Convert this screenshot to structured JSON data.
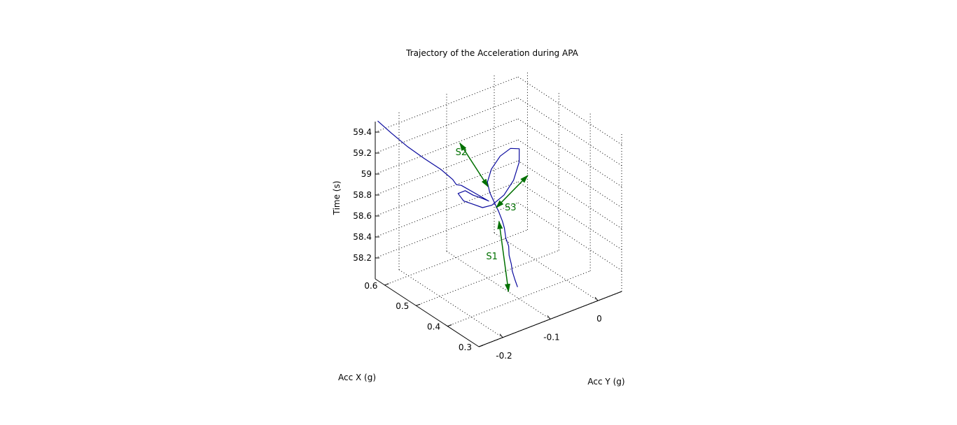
{
  "chart_data": {
    "type": "line3d",
    "title": "Trajectory of the Acceleration during APA",
    "xlabel": "Acc X (g)",
    "ylabel": "Acc Y (g)",
    "zlabel": "Time (s)",
    "x_ticks": [
      "0.3",
      "0.4",
      "0.5",
      "0.6"
    ],
    "y_ticks": [
      "-0.2",
      "-0.1",
      "0"
    ],
    "z_ticks": [
      "58.2",
      "58.4",
      "58.6",
      "58.8",
      "59",
      "59.2",
      "59.4"
    ],
    "grid": true,
    "colors": {
      "trajectory": "#0a0a9e",
      "annotation": "#007000"
    },
    "series": [
      {
        "name": "",
        "points": [
          [
            0.398,
            -0.104,
            58.12
          ],
          [
            0.405,
            -0.105,
            58.18
          ],
          [
            0.412,
            -0.106,
            58.25
          ],
          [
            0.418,
            -0.104,
            58.3
          ],
          [
            0.422,
            -0.106,
            58.38
          ],
          [
            0.428,
            -0.103,
            58.45
          ],
          [
            0.434,
            -0.105,
            58.52
          ],
          [
            0.44,
            -0.104,
            58.6
          ],
          [
            0.445,
            -0.105,
            58.66
          ],
          [
            0.452,
            -0.108,
            58.74
          ],
          [
            0.46,
            -0.112,
            58.82
          ],
          [
            0.47,
            -0.115,
            58.9
          ],
          [
            0.482,
            -0.112,
            58.97
          ],
          [
            0.495,
            -0.095,
            59.04
          ],
          [
            0.505,
            -0.07,
            59.1
          ],
          [
            0.51,
            -0.045,
            59.12
          ],
          [
            0.505,
            -0.03,
            59.1
          ],
          [
            0.49,
            -0.04,
            59.02
          ],
          [
            0.47,
            -0.065,
            58.93
          ],
          [
            0.455,
            -0.095,
            58.87
          ],
          [
            0.448,
            -0.125,
            58.84
          ],
          [
            0.455,
            -0.14,
            58.83
          ],
          [
            0.47,
            -0.15,
            58.85
          ],
          [
            0.485,
            -0.16,
            58.87
          ],
          [
            0.495,
            -0.165,
            58.93
          ],
          [
            0.495,
            -0.15,
            58.93
          ],
          [
            0.485,
            -0.14,
            58.89
          ],
          [
            0.47,
            -0.13,
            58.87
          ],
          [
            0.458,
            -0.125,
            58.86
          ],
          [
            0.48,
            -0.14,
            58.92
          ],
          [
            0.5,
            -0.155,
            58.98
          ],
          [
            0.508,
            -0.16,
            58.98
          ],
          [
            0.512,
            -0.165,
            59.03
          ],
          [
            0.535,
            -0.175,
            59.1
          ],
          [
            0.565,
            -0.19,
            59.17
          ],
          [
            0.595,
            -0.205,
            59.25
          ],
          [
            0.625,
            -0.22,
            59.35
          ],
          [
            0.645,
            -0.235,
            59.45
          ]
        ]
      }
    ],
    "annotations": [
      {
        "label": "S1",
        "from": [
          0.395,
          -0.125,
          58.12
        ],
        "to": [
          0.445,
          -0.112,
          58.67
        ]
      },
      {
        "label": "S2",
        "from": [
          0.474,
          -0.116,
          58.95
        ],
        "to": [
          0.532,
          -0.137,
          59.29
        ]
      },
      {
        "label": "S3",
        "from": [
          0.448,
          -0.116,
          58.8
        ],
        "to": [
          0.455,
          -0.045,
          58.97
        ]
      }
    ]
  }
}
